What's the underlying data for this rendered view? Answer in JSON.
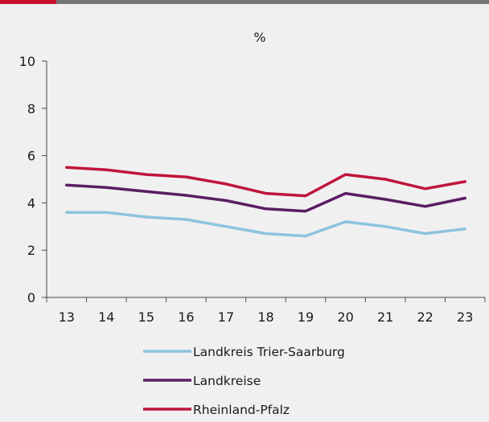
{
  "chart_data": {
    "type": "line",
    "unit_label": "%",
    "x": [
      "13",
      "14",
      "15",
      "16",
      "17",
      "18",
      "19",
      "20",
      "21",
      "22",
      "23"
    ],
    "ylim": [
      0,
      10
    ],
    "yticks": [
      0,
      2,
      4,
      6,
      8,
      10
    ],
    "grid": false,
    "legend_position": "bottom",
    "series": [
      {
        "name": "Landkreis Trier-Saarburg",
        "color": "#8dc3df",
        "values": [
          3.6,
          3.6,
          3.4,
          3.3,
          3.0,
          2.7,
          2.6,
          3.2,
          3.0,
          2.7,
          2.9
        ]
      },
      {
        "name": "Landkreise",
        "color": "#5b1d64",
        "values": [
          4.75,
          4.65,
          4.48,
          4.32,
          4.1,
          3.75,
          3.65,
          4.4,
          4.15,
          3.85,
          4.2
        ]
      },
      {
        "name": "Rheinland-Pfalz",
        "color": "#c0153a",
        "values": [
          5.5,
          5.4,
          5.2,
          5.1,
          4.8,
          4.4,
          4.3,
          5.2,
          5.0,
          4.6,
          4.9
        ]
      }
    ]
  }
}
